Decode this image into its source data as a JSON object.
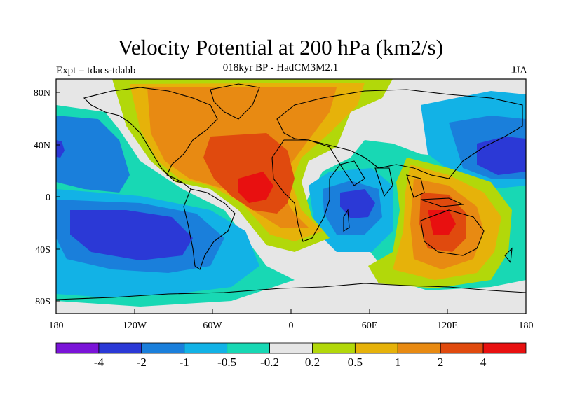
{
  "header": {
    "title": "Velocity Potential at 200 hPa (km2/s)",
    "subtitle": "018kyr BP - HadCM3M2.1",
    "left_label": "Expt = tdacs-tdabb",
    "right_label": "JJA"
  },
  "map": {
    "lat_ticks": [
      "80N",
      "40N",
      "0",
      "40S",
      "80S"
    ],
    "lon_ticks": [
      "180",
      "120W",
      "60W",
      "0",
      "60E",
      "120E",
      "180"
    ]
  },
  "colorbar": {
    "colors": [
      "#7a14d8",
      "#2b39d6",
      "#1a7fdb",
      "#12b2e6",
      "#18d8b4",
      "#e6e6e6",
      "#b2d80a",
      "#e6b20a",
      "#e88a12",
      "#e04a0e",
      "#e81010"
    ],
    "labels": [
      "-4",
      "-2",
      "-1",
      "-0.5",
      "-0.2",
      "0.2",
      "0.5",
      "1",
      "2",
      "4"
    ]
  }
}
